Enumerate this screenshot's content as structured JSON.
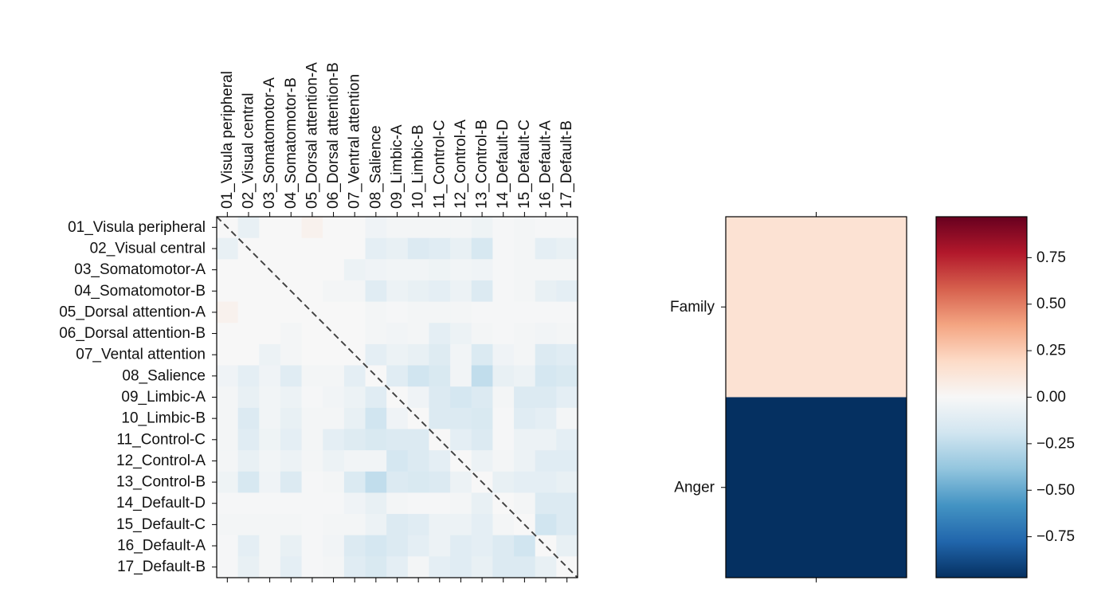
{
  "chart_data": [
    {
      "type": "heatmap",
      "labels": [
        "01_Visula peripheral",
        "02_Visual central",
        "03_Somatomotor-A",
        "04_Somatomotor-B",
        "05_Dorsal attention-A",
        "06_Dorsal attention-B",
        "07_Ventral attention",
        "08_Salience",
        "09_Limbic-A",
        "10_Limbic-B",
        "11_Control-C",
        "12_Control-A",
        "13_Control-B",
        "14_Default-D",
        "15_Default-C",
        "16_Default-A",
        "17_Default-B"
      ],
      "row_labels": [
        "01_Visula peripheral",
        "02_Visual central",
        "03_Somatomotor-A",
        "04_Somatomotor-B",
        "05_Dorsal attention-A",
        "06_Dorsal attention-B",
        "07_Vental attention",
        "08_Salience",
        "09_Limbic-A",
        "10_Limbic-B",
        "11_Control-C",
        "12_Control-A",
        "13_Control-B",
        "14_Default-D",
        "15_Default-C",
        "16_Default-A",
        "17_Default-B"
      ],
      "values": [
        [
          0,
          -0.08,
          0,
          0,
          0.04,
          0,
          0,
          -0.04,
          -0.02,
          -0.02,
          -0.02,
          -0.02,
          -0.05,
          -0.01,
          -0.02,
          -0.01,
          -0.01
        ],
        [
          -0.08,
          0,
          0,
          0,
          0,
          0,
          0,
          -0.1,
          -0.08,
          -0.14,
          -0.12,
          -0.08,
          -0.17,
          -0.01,
          -0.02,
          -0.1,
          -0.08
        ],
        [
          0,
          0,
          0,
          0,
          0,
          0,
          -0.06,
          -0.04,
          -0.03,
          -0.03,
          -0.05,
          -0.03,
          -0.04,
          -0.01,
          -0.02,
          -0.02,
          -0.02
        ],
        [
          0,
          0,
          0,
          0,
          0,
          -0.02,
          -0.02,
          -0.12,
          -0.06,
          -0.08,
          -0.1,
          -0.06,
          -0.14,
          -0.01,
          -0.02,
          -0.08,
          -0.1
        ],
        [
          0.04,
          0,
          0,
          0,
          0,
          0,
          0,
          -0.02,
          -0.01,
          -0.02,
          -0.02,
          -0.02,
          -0.01,
          -0.01,
          -0.01,
          -0.01,
          -0.01
        ],
        [
          0,
          0,
          0,
          -0.02,
          0,
          0,
          0,
          -0.02,
          -0.03,
          -0.02,
          -0.1,
          -0.06,
          -0.02,
          -0.01,
          -0.02,
          -0.03,
          -0.02
        ],
        [
          0,
          0,
          -0.06,
          -0.02,
          0,
          0,
          0,
          -0.1,
          -0.06,
          -0.08,
          -0.13,
          -0.03,
          -0.15,
          -0.04,
          -0.02,
          -0.14,
          -0.12
        ],
        [
          -0.04,
          -0.1,
          -0.04,
          -0.12,
          -0.02,
          -0.02,
          -0.1,
          0,
          -0.12,
          -0.2,
          -0.16,
          -0.03,
          -0.25,
          -0.08,
          -0.06,
          -0.18,
          -0.16
        ],
        [
          -0.02,
          -0.08,
          -0.03,
          -0.06,
          -0.01,
          -0.03,
          -0.06,
          -0.12,
          0,
          -0.04,
          -0.14,
          -0.18,
          -0.14,
          -0.02,
          -0.14,
          -0.14,
          -0.1
        ],
        [
          -0.02,
          -0.14,
          -0.03,
          -0.08,
          -0.02,
          -0.02,
          -0.08,
          -0.2,
          -0.04,
          0,
          -0.14,
          -0.14,
          -0.16,
          -0.01,
          -0.12,
          -0.1,
          -0.02
        ],
        [
          -0.02,
          -0.12,
          -0.05,
          -0.1,
          -0.02,
          -0.1,
          -0.13,
          -0.16,
          -0.14,
          -0.14,
          0,
          -0.1,
          -0.14,
          -0.01,
          -0.06,
          -0.06,
          -0.1
        ],
        [
          -0.02,
          -0.08,
          -0.03,
          -0.06,
          -0.02,
          -0.06,
          -0.03,
          -0.03,
          -0.18,
          -0.14,
          -0.1,
          0,
          -0.06,
          -0.02,
          -0.06,
          -0.12,
          -0.12
        ],
        [
          -0.05,
          -0.17,
          -0.04,
          -0.14,
          -0.01,
          -0.02,
          -0.15,
          -0.25,
          -0.14,
          -0.16,
          -0.14,
          -0.06,
          0,
          -0.08,
          -0.1,
          -0.1,
          -0.08
        ],
        [
          -0.01,
          -0.01,
          -0.01,
          -0.01,
          -0.01,
          -0.01,
          -0.04,
          -0.08,
          -0.02,
          -0.01,
          -0.01,
          -0.02,
          -0.08,
          0,
          -0.02,
          -0.14,
          -0.14
        ],
        [
          -0.02,
          -0.02,
          -0.02,
          -0.02,
          -0.01,
          -0.02,
          -0.02,
          -0.06,
          -0.14,
          -0.12,
          -0.06,
          -0.06,
          -0.1,
          -0.02,
          0,
          -0.2,
          -0.14
        ],
        [
          -0.01,
          -0.1,
          -0.02,
          -0.08,
          -0.01,
          -0.03,
          -0.14,
          -0.18,
          -0.14,
          -0.1,
          -0.06,
          -0.12,
          -0.1,
          -0.14,
          -0.2,
          0,
          -0.08
        ],
        [
          -0.01,
          -0.08,
          -0.02,
          -0.1,
          -0.01,
          -0.02,
          -0.12,
          -0.16,
          -0.1,
          -0.02,
          -0.1,
          -0.12,
          -0.08,
          -0.14,
          -0.14,
          -0.08,
          0
        ]
      ],
      "diagonal_line": "dashed",
      "vmin": -1,
      "vmax": 1
    },
    {
      "type": "heatmap",
      "row_labels": [
        "Family",
        "Anger"
      ],
      "values": [
        [
          0.15
        ],
        [
          -1.0
        ]
      ],
      "vmin": -1,
      "vmax": 1
    }
  ],
  "colorbar": {
    "tick_values": [
      0.75,
      0.5,
      0.25,
      0.0,
      -0.25,
      -0.5,
      -0.75
    ],
    "tick_labels": [
      "0.75",
      "0.50",
      "0.25",
      "0.00",
      "−0.25",
      "−0.50",
      "−0.75"
    ],
    "range": [
      -0.97,
      0.97
    ],
    "colormap": [
      "#67001f",
      "#b2182b",
      "#d6604d",
      "#f4a582",
      "#fddbc7",
      "#f7f7f7",
      "#d1e5f0",
      "#92c5de",
      "#4393c3",
      "#2166ac",
      "#053061"
    ]
  }
}
